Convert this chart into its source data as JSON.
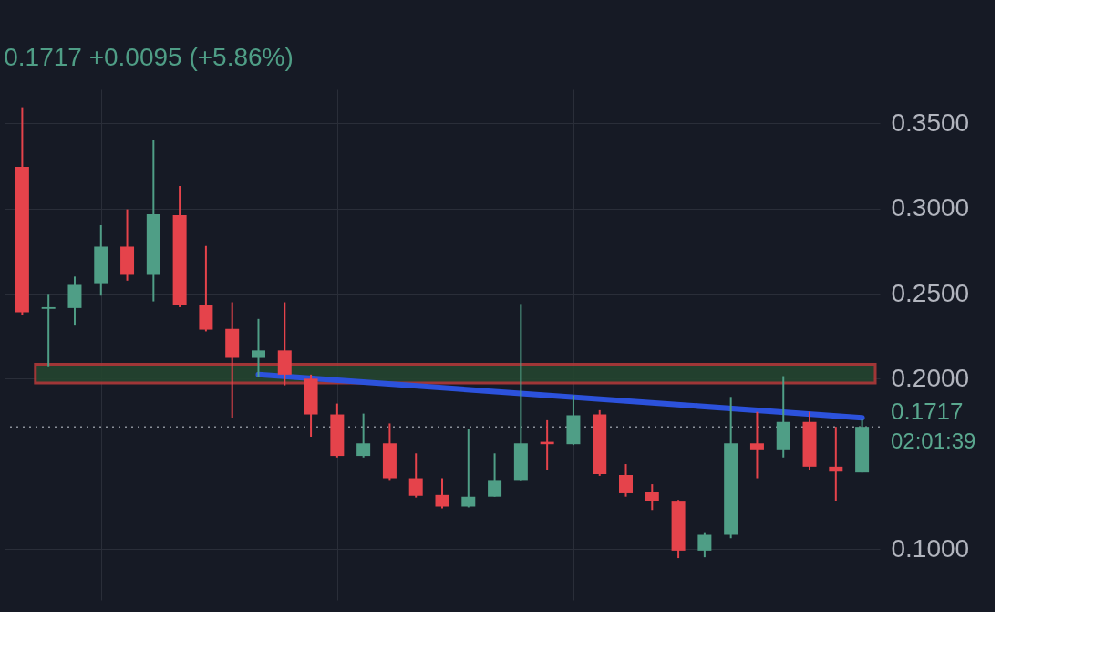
{
  "chart_data": {
    "type": "candlestick",
    "subtitle": "0.1717 +0.0095 (+5.86%)",
    "categories": [
      null,
      null,
      null,
      null,
      null,
      null,
      null,
      null,
      null,
      null,
      null,
      null,
      null,
      null,
      null,
      null,
      null,
      null,
      null,
      null,
      null,
      null,
      null,
      null,
      null,
      null,
      null,
      null,
      null,
      null,
      null,
      null,
      null
    ],
    "ohlc": [
      [
        0.3244,
        0.3595,
        0.2376,
        0.239
      ],
      [
        0.241,
        0.2498,
        0.2073,
        0.242
      ],
      [
        0.2415,
        0.26,
        0.2317,
        0.2551
      ],
      [
        0.2561,
        0.2902,
        0.2488,
        0.2776
      ],
      [
        0.2776,
        0.2995,
        0.2576,
        0.261
      ],
      [
        0.261,
        0.34,
        0.2454,
        0.2966
      ],
      [
        0.2961,
        0.3132,
        0.242,
        0.2434
      ],
      [
        0.2434,
        0.278,
        0.2278,
        0.2288
      ],
      [
        0.2293,
        0.2449,
        0.1771,
        0.2122
      ],
      [
        0.2122,
        0.2351,
        0.201,
        0.2166
      ],
      [
        0.2166,
        0.2449,
        0.1961,
        0.2024
      ],
      [
        0.2,
        0.2024,
        0.1659,
        0.179
      ],
      [
        0.179,
        0.1854,
        0.1537,
        0.1546
      ],
      [
        0.1546,
        0.1795,
        0.1537,
        0.162
      ],
      [
        0.162,
        0.1737,
        0.1405,
        0.1415
      ],
      [
        0.1415,
        0.1561,
        0.1302,
        0.1312
      ],
      [
        0.1317,
        0.1415,
        0.1239,
        0.1249
      ],
      [
        0.1249,
        0.1707,
        0.1244,
        0.1307
      ],
      [
        0.1307,
        0.1561,
        0.1307,
        0.1405
      ],
      [
        0.1405,
        0.2439,
        0.14,
        0.162
      ],
      [
        0.1629,
        0.1756,
        0.1463,
        0.1615
      ],
      [
        0.1615,
        0.1902,
        0.161,
        0.1785
      ],
      [
        0.179,
        0.1815,
        0.1429,
        0.1439
      ],
      [
        0.1434,
        0.1498,
        0.1307,
        0.1327
      ],
      [
        0.1332,
        0.138,
        0.1229,
        0.1283
      ],
      [
        0.1278,
        0.1288,
        0.0946,
        0.099
      ],
      [
        0.099,
        0.1093,
        0.0951,
        0.1083
      ],
      [
        0.1083,
        0.1893,
        0.1063,
        0.162
      ],
      [
        0.162,
        0.1805,
        0.1415,
        0.1585
      ],
      [
        0.1585,
        0.2015,
        0.1537,
        0.1746
      ],
      [
        0.1746,
        0.1805,
        0.1463,
        0.1483
      ],
      [
        0.1483,
        0.1717,
        0.1283,
        0.1454
      ],
      [
        0.1449,
        0.1761,
        0.1449,
        0.1717
      ]
    ],
    "series": [
      {
        "type": "line",
        "values": [
          null,
          null,
          null,
          null,
          null,
          null,
          null,
          null,
          null,
          0.2024,
          null,
          null,
          null,
          null,
          null,
          null,
          null,
          null,
          null,
          null,
          null,
          null,
          null,
          null,
          null,
          null,
          null,
          null,
          null,
          null,
          null,
          null,
          0.177
        ],
        "color": "#2c52dc"
      }
    ],
    "ylim": [
      0.07,
      0.37
    ],
    "yticks": [
      {
        "value": 0.1,
        "label": "0.1000"
      },
      {
        "value": 0.2,
        "label": "0.2000"
      },
      {
        "value": 0.25,
        "label": "0.2500"
      },
      {
        "value": 0.3,
        "label": "0.3000"
      },
      {
        "value": 0.35,
        "label": "0.3500"
      }
    ],
    "tick_labels": "y",
    "grid": true,
    "bands": [
      {
        "axis": "y",
        "from": 0.1975,
        "to": 0.2085,
        "color": "#b03a3a"
      }
    ],
    "ref_lines": [
      {
        "axis": "y",
        "value": 0.1717,
        "label": "0.1717",
        "color": "#8a8f99",
        "line_style": "dotted"
      }
    ],
    "annotations": [
      "02:01:39"
    ]
  }
}
